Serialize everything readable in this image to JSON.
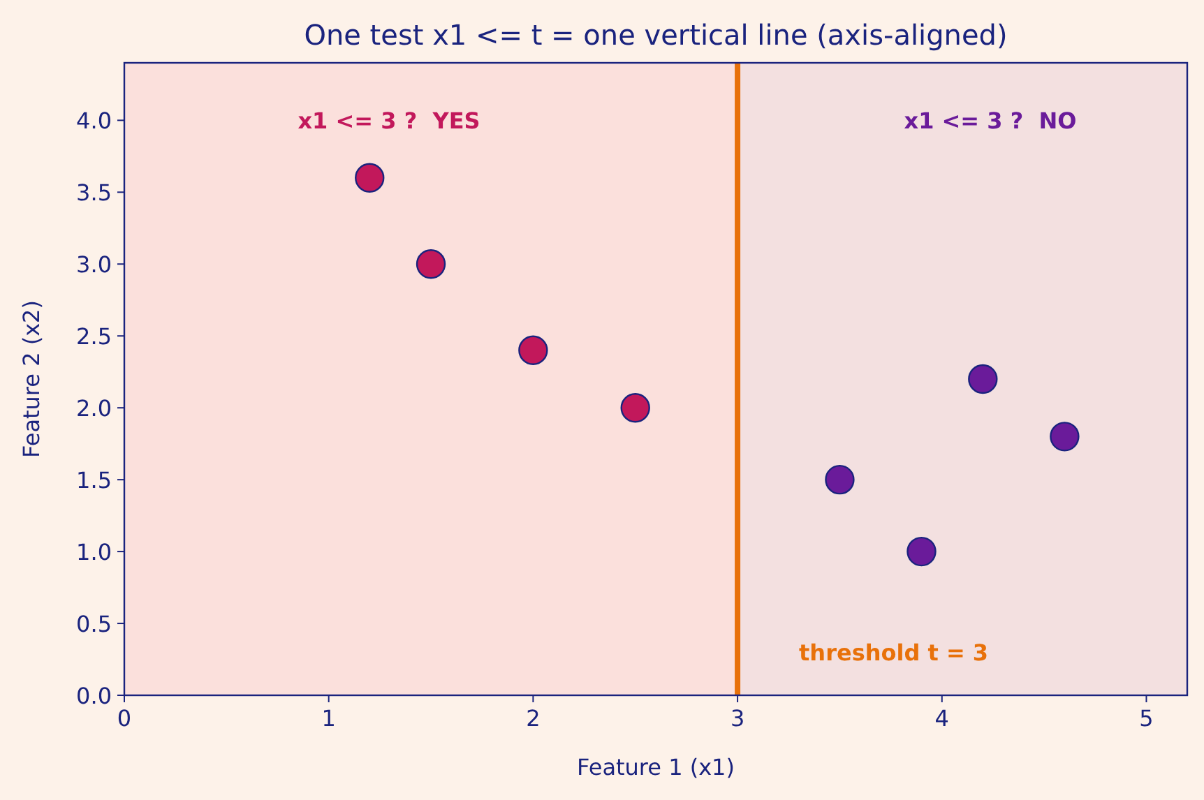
{
  "chart_data": {
    "type": "scatter",
    "title": "One test x1 <= t = one vertical line (axis-aligned)",
    "xlabel": "Feature 1 (x1)",
    "ylabel": "Feature 2 (x2)",
    "xlim": [
      0,
      5.2
    ],
    "ylim": [
      0,
      4.4
    ],
    "xticks": [
      0,
      1,
      2,
      3,
      4,
      5
    ],
    "yticks": [
      {
        "value": 0,
        "label": "0.0"
      },
      {
        "value": 0.5,
        "label": "0.5"
      },
      {
        "value": 1,
        "label": "1.0"
      },
      {
        "value": 1.5,
        "label": "1.5"
      },
      {
        "value": 2,
        "label": "2.0"
      },
      {
        "value": 2.5,
        "label": "2.5"
      },
      {
        "value": 3,
        "label": "3.0"
      },
      {
        "value": 3.5,
        "label": "3.5"
      },
      {
        "value": 4,
        "label": "4.0"
      }
    ],
    "series": [
      {
        "color": "#c2185b",
        "x": [
          1.2,
          1.5,
          2.0,
          2.5
        ],
        "values": [
          3.6,
          3.0,
          2.4,
          2.0
        ]
      },
      {
        "color": "#6a1b9a",
        "x": [
          3.5,
          3.9,
          4.2,
          4.6
        ],
        "values": [
          1.5,
          1.0,
          2.2,
          1.8
        ]
      }
    ],
    "bands": [
      {
        "axis": "x",
        "from": 0,
        "to": 3,
        "label": "x1 <= 3 ?  YES",
        "color": "#fbe0dc"
      },
      {
        "axis": "x",
        "from": 3,
        "to": 5.2,
        "label": "x1 <= 3 ?  NO",
        "color": "#f3e0e0"
      }
    ],
    "ref_lines": [
      {
        "axis": "x",
        "value": 3,
        "label": "threshold t = 3",
        "color": "#e8710a",
        "line_style": "solid"
      }
    ],
    "marker": "circle",
    "grid": false
  }
}
